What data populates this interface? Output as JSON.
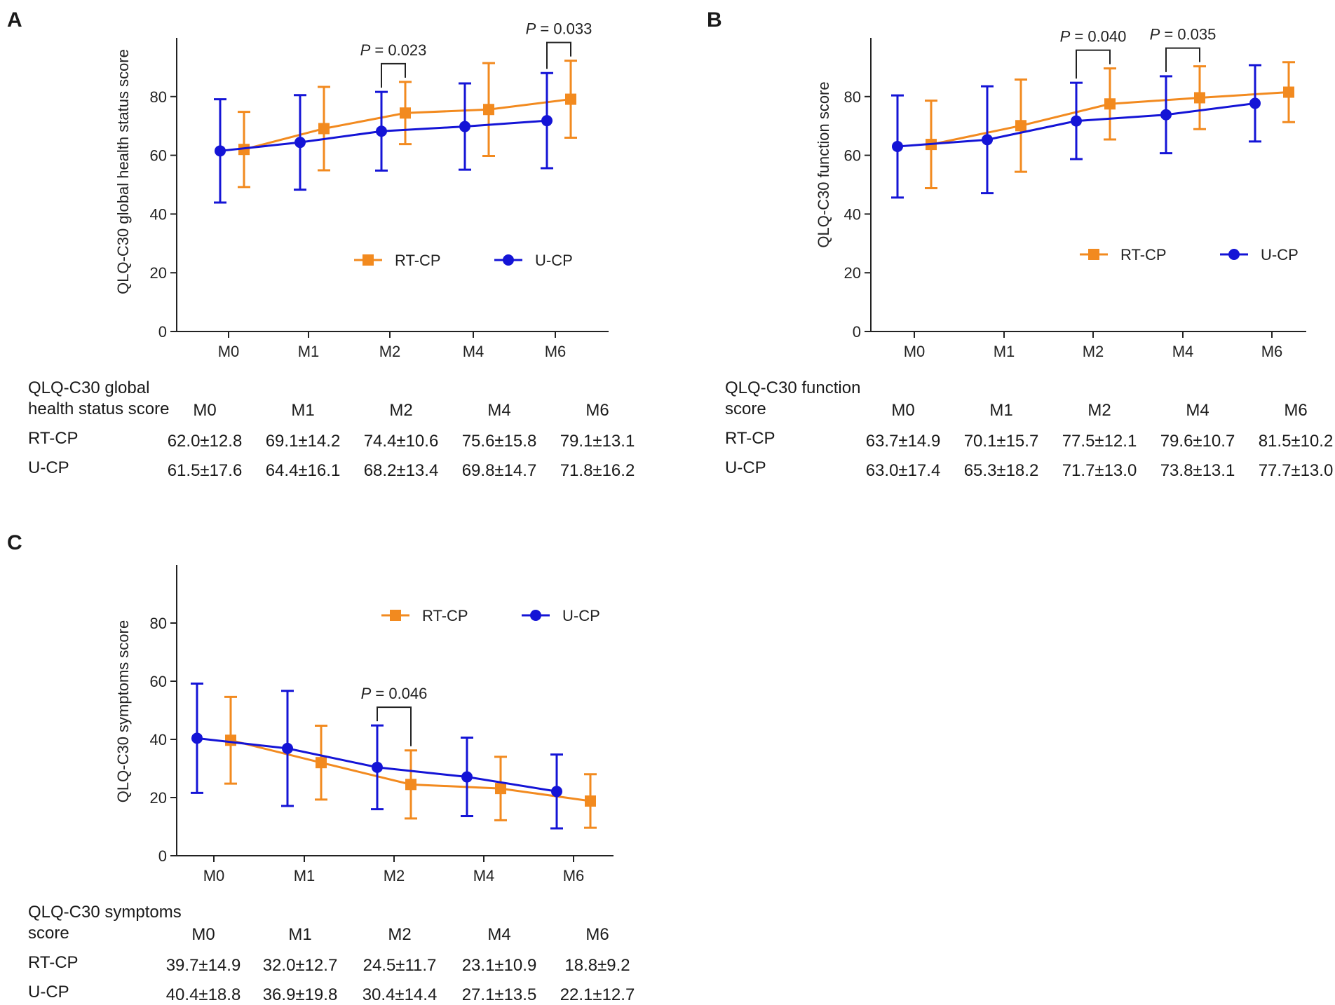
{
  "colors": {
    "rt_cp": "#F28A1F",
    "u_cp": "#1414D6",
    "axis": "#222222"
  },
  "chart_data": [
    {
      "panel": "A",
      "type": "line",
      "ylabel": "QLQ-C30 global health status score",
      "ylim": [
        0,
        100
      ],
      "yticks": [
        0,
        20,
        40,
        60,
        80
      ],
      "categories": [
        "M0",
        "M1",
        "M2",
        "M4",
        "M6"
      ],
      "legend_placement": "lower-right",
      "series": [
        {
          "name": "RT-CP",
          "marker": "square",
          "values": [
            62.0,
            69.1,
            74.4,
            75.6,
            79.1
          ],
          "errors": [
            12.8,
            14.2,
            10.6,
            15.8,
            13.1
          ]
        },
        {
          "name": "U-CP",
          "marker": "circle",
          "values": [
            61.5,
            64.4,
            68.2,
            69.8,
            71.8
          ],
          "errors": [
            17.6,
            16.1,
            13.4,
            14.7,
            16.2
          ]
        }
      ],
      "annotations": [
        {
          "category": "M2",
          "p_label": "P",
          "p_value": "= 0.023"
        },
        {
          "category": "M6",
          "p_label": "P",
          "p_value": "= 0.033"
        }
      ],
      "table": {
        "title_lines": [
          "QLQ-C30 global",
          "health status score"
        ],
        "headers": [
          "M0",
          "M1",
          "M2",
          "M4",
          "M6"
        ],
        "rows": [
          {
            "label": "RT-CP",
            "cells": [
              "62.0±12.8",
              "69.1±14.2",
              "74.4±10.6",
              "75.6±15.8",
              "79.1±13.1"
            ]
          },
          {
            "label": "U-CP",
            "cells": [
              "61.5±17.6",
              "64.4±16.1",
              "68.2±13.4",
              "69.8±14.7",
              "71.8±16.2"
            ]
          }
        ]
      }
    },
    {
      "panel": "B",
      "type": "line",
      "ylabel": "QLQ-C30 function score",
      "ylim": [
        0,
        100
      ],
      "yticks": [
        0,
        20,
        40,
        60,
        80
      ],
      "categories": [
        "M0",
        "M1",
        "M2",
        "M4",
        "M6"
      ],
      "legend_placement": "lower-right",
      "series": [
        {
          "name": "RT-CP",
          "marker": "square",
          "values": [
            63.7,
            70.1,
            77.5,
            79.6,
            81.5
          ],
          "errors": [
            14.9,
            15.7,
            12.1,
            10.7,
            10.2
          ]
        },
        {
          "name": "U-CP",
          "marker": "circle",
          "values": [
            63.0,
            65.3,
            71.7,
            73.8,
            77.7
          ],
          "errors": [
            17.4,
            18.2,
            13.0,
            13.1,
            13.0
          ]
        }
      ],
      "annotations": [
        {
          "category": "M2",
          "p_label": "P",
          "p_value": "= 0.040"
        },
        {
          "category": "M4",
          "p_label": "P",
          "p_value": "= 0.035"
        }
      ],
      "table": {
        "title_lines": [
          "QLQ-C30 function",
          "score"
        ],
        "headers": [
          "M0",
          "M1",
          "M2",
          "M4",
          "M6"
        ],
        "rows": [
          {
            "label": "RT-CP",
            "cells": [
              "63.7±14.9",
              "70.1±15.7",
              "77.5±12.1",
              "79.6±10.7",
              "81.5±10.2"
            ]
          },
          {
            "label": "U-CP",
            "cells": [
              "63.0±17.4",
              "65.3±18.2",
              "71.7±13.0",
              "73.8±13.1",
              "77.7±13.0"
            ]
          }
        ]
      }
    },
    {
      "panel": "C",
      "type": "line",
      "ylabel": "QLQ-C30 symptoms score",
      "ylim": [
        0,
        100
      ],
      "yticks": [
        0,
        20,
        40,
        60,
        80
      ],
      "categories": [
        "M0",
        "M1",
        "M2",
        "M4",
        "M6"
      ],
      "legend_placement": "top-right",
      "series": [
        {
          "name": "RT-CP",
          "marker": "square",
          "values": [
            39.7,
            32.0,
            24.5,
            23.1,
            18.8
          ],
          "errors": [
            14.9,
            12.7,
            11.7,
            10.9,
            9.2
          ]
        },
        {
          "name": "U-CP",
          "marker": "circle",
          "values": [
            40.4,
            36.9,
            30.4,
            27.1,
            22.1
          ],
          "errors": [
            18.8,
            19.8,
            14.4,
            13.5,
            12.7
          ]
        }
      ],
      "annotations": [
        {
          "category": "M2",
          "p_label": "P",
          "p_value": "= 0.046"
        }
      ],
      "table": {
        "title_lines": [
          "QLQ-C30 symptoms",
          "score"
        ],
        "headers": [
          "M0",
          "M1",
          "M2",
          "M4",
          "M6"
        ],
        "rows": [
          {
            "label": "RT-CP",
            "cells": [
              "39.7±14.9",
              "32.0±12.7",
              "24.5±11.7",
              "23.1±10.9",
              "18.8±9.2"
            ]
          },
          {
            "label": "U-CP",
            "cells": [
              "40.4±18.8",
              "36.9±19.8",
              "30.4±14.4",
              "27.1±13.5",
              "22.1±12.7"
            ]
          }
        ]
      }
    }
  ]
}
